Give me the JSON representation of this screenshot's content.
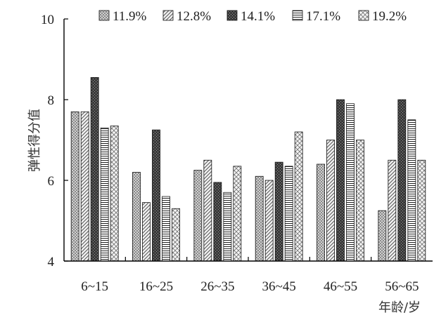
{
  "chart_data": {
    "type": "bar",
    "categories": [
      "6~15",
      "16~25",
      "26~35",
      "36~45",
      "46~55",
      "56~65"
    ],
    "series": [
      {
        "name": "11.9%",
        "values": [
          7.7,
          6.2,
          6.25,
          6.1,
          6.4,
          5.25
        ]
      },
      {
        "name": "12.8%",
        "values": [
          7.7,
          5.45,
          6.5,
          6.0,
          7.0,
          6.5
        ]
      },
      {
        "name": "14.1%",
        "values": [
          8.55,
          7.25,
          5.95,
          6.45,
          8.0,
          8.0
        ]
      },
      {
        "name": "17.1%",
        "values": [
          7.3,
          5.6,
          5.7,
          6.35,
          7.9,
          7.5
        ]
      },
      {
        "name": "19.2%",
        "values": [
          7.35,
          5.3,
          6.35,
          7.2,
          7.0,
          6.5
        ]
      }
    ],
    "ylabel": "弹性得分值",
    "xlabel": "年龄/岁",
    "ylim": [
      4,
      10
    ],
    "yticks": [
      4,
      6,
      8,
      10
    ],
    "grid": false,
    "legend": "top"
  }
}
